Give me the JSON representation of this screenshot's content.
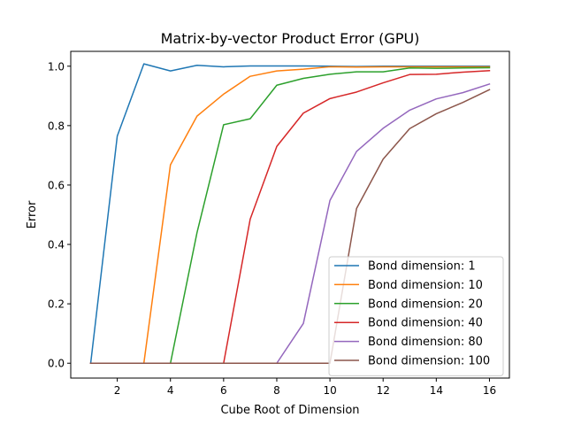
{
  "chart_data": {
    "type": "line",
    "title": "Matrix-by-vector Product Error (GPU)",
    "xlabel": "Cube Root of Dimension",
    "ylabel": "Error",
    "xlim": [
      0.25,
      16.75
    ],
    "ylim": [
      -0.05,
      1.05
    ],
    "xticks": [
      2,
      4,
      6,
      8,
      10,
      12,
      14,
      16
    ],
    "xtick_labels": [
      "2",
      "4",
      "6",
      "8",
      "10",
      "12",
      "14",
      "16"
    ],
    "yticks": [
      0.0,
      0.2,
      0.4,
      0.6,
      0.8,
      1.0
    ],
    "ytick_labels": [
      "0.0",
      "0.2",
      "0.4",
      "0.6",
      "0.8",
      "1.0"
    ],
    "grid": false,
    "legend_position": "lower-right",
    "x": [
      1,
      2,
      3,
      4,
      5,
      6,
      7,
      8,
      9,
      10,
      11,
      12,
      13,
      14,
      15,
      16
    ],
    "series": [
      {
        "name": "Bond dimension: 1",
        "color": "#1f77b4",
        "values": [
          0.0,
          0.765,
          1.008,
          0.984,
          1.003,
          0.998,
          1.001,
          1.001,
          1.001,
          1.0,
          0.999,
          1.0,
          1.0,
          1.0,
          1.0,
          1.0
        ]
      },
      {
        "name": "Bond dimension: 10",
        "color": "#ff7f0e",
        "values": [
          0.0,
          0.0,
          0.0,
          0.668,
          0.832,
          0.906,
          0.966,
          0.984,
          0.99,
          0.998,
          0.997,
          0.998,
          0.998,
          0.998,
          0.998,
          0.998
        ]
      },
      {
        "name": "Bond dimension: 20",
        "color": "#2ca02c",
        "values": [
          0.0,
          0.0,
          0.0,
          0.0,
          0.44,
          0.803,
          0.823,
          0.936,
          0.959,
          0.973,
          0.981,
          0.981,
          0.994,
          0.993,
          0.994,
          0.995
        ]
      },
      {
        "name": "Bond dimension: 40",
        "color": "#d62728",
        "values": [
          0.0,
          0.0,
          0.0,
          0.0,
          0.0,
          0.0,
          0.485,
          0.73,
          0.842,
          0.891,
          0.913,
          0.944,
          0.972,
          0.973,
          0.98,
          0.985
        ]
      },
      {
        "name": "Bond dimension: 80",
        "color": "#9467bd",
        "values": [
          0.0,
          0.0,
          0.0,
          0.0,
          0.0,
          0.0,
          0.0,
          0.0,
          0.134,
          0.548,
          0.713,
          0.791,
          0.852,
          0.89,
          0.911,
          0.94
        ]
      },
      {
        "name": "Bond dimension: 100",
        "color": "#8c564b",
        "values": [
          0.0,
          0.0,
          0.0,
          0.0,
          0.0,
          0.0,
          0.0,
          0.0,
          0.0,
          0.0,
          0.521,
          0.687,
          0.79,
          0.84,
          0.878,
          0.921
        ]
      }
    ]
  }
}
